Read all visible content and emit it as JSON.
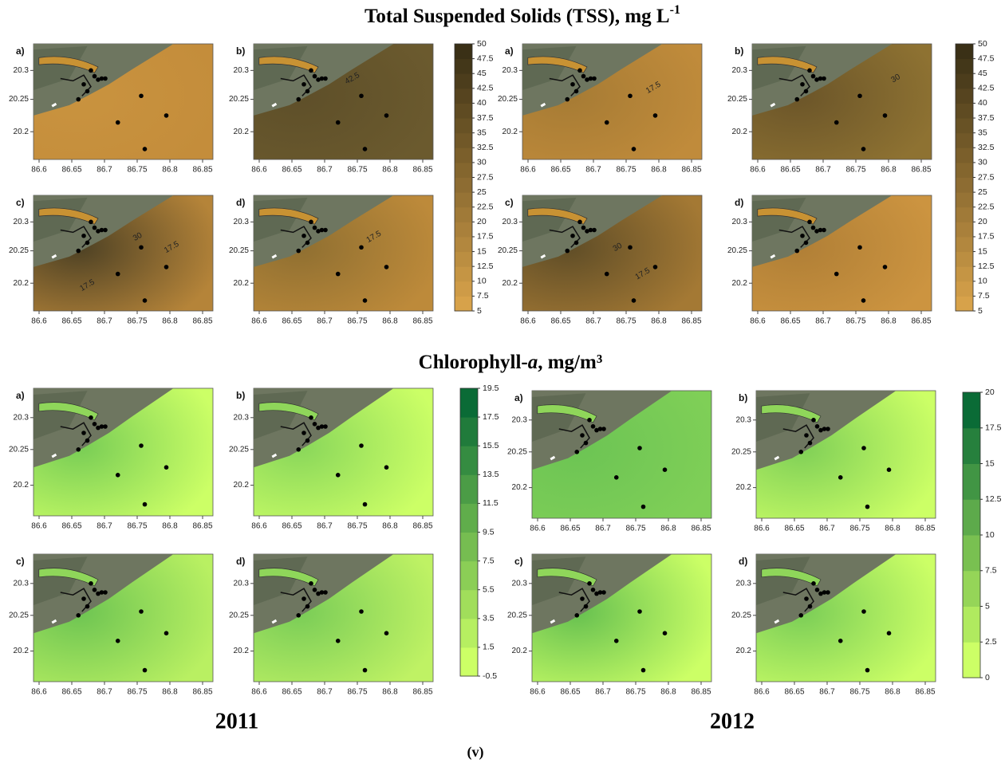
{
  "tss": {
    "title": "Total Suspended Solids (TSS), mg L",
    "title_sup": "-1",
    "colorbar_2011": [
      "5",
      "7.5",
      "10",
      "12.5",
      "15",
      "17.5",
      "20",
      "22.5",
      "25",
      "27.5",
      "30",
      "32.5",
      "35",
      "37.5",
      "40",
      "42.5",
      "45",
      "47.5",
      "50"
    ],
    "colorbar_2012": [
      "5",
      "7.5",
      "10",
      "12.5",
      "15",
      "17.5",
      "20",
      "22.5",
      "25",
      "27.5",
      "30",
      "32.5",
      "35",
      "37.5",
      "40",
      "42.5",
      "45",
      "47.5",
      "50"
    ],
    "panels_2011": [
      {
        "label": "a)",
        "contour_labels": []
      },
      {
        "label": "b)",
        "contour_labels": [
          "42.5"
        ]
      },
      {
        "label": "c)",
        "contour_labels": [
          "30",
          "17.5",
          "17.5"
        ]
      },
      {
        "label": "d)",
        "contour_labels": [
          "17.5"
        ]
      }
    ],
    "panels_2012": [
      {
        "label": "a)",
        "contour_labels": [
          "17.5"
        ]
      },
      {
        "label": "b)",
        "contour_labels": [
          "30"
        ]
      },
      {
        "label": "c)",
        "contour_labels": [
          "30",
          "17.5"
        ]
      },
      {
        "label": "d)",
        "contour_labels": []
      }
    ]
  },
  "chl": {
    "title_prefix": "Chlorophyll-",
    "title_italic": "a",
    "title_suffix": ", mg/m³",
    "colorbar_2011": [
      "-0.5",
      "1.5",
      "3.5",
      "5.5",
      "7.5",
      "9.5",
      "11.5",
      "13.5",
      "15.5",
      "17.5",
      "19.5"
    ],
    "colorbar_2012": [
      "0",
      "2.5",
      "5",
      "7.5",
      "10",
      "12.5",
      "15",
      "17.5",
      "20"
    ],
    "panels_2011": [
      {
        "label": "a)"
      },
      {
        "label": "b)"
      },
      {
        "label": "c)"
      },
      {
        "label": "d)"
      }
    ],
    "panels_2012": [
      {
        "label": "a)"
      },
      {
        "label": "b)"
      },
      {
        "label": "c)"
      },
      {
        "label": "d)"
      }
    ]
  },
  "map_axes": {
    "xticks": [
      "86.6",
      "86.65",
      "86.7",
      "86.75",
      "86.8",
      "86.85"
    ],
    "yticks": [
      "20.3",
      "20.25",
      "20.2"
    ]
  },
  "years": [
    "2011",
    "2012"
  ],
  "caption": "(v)"
}
